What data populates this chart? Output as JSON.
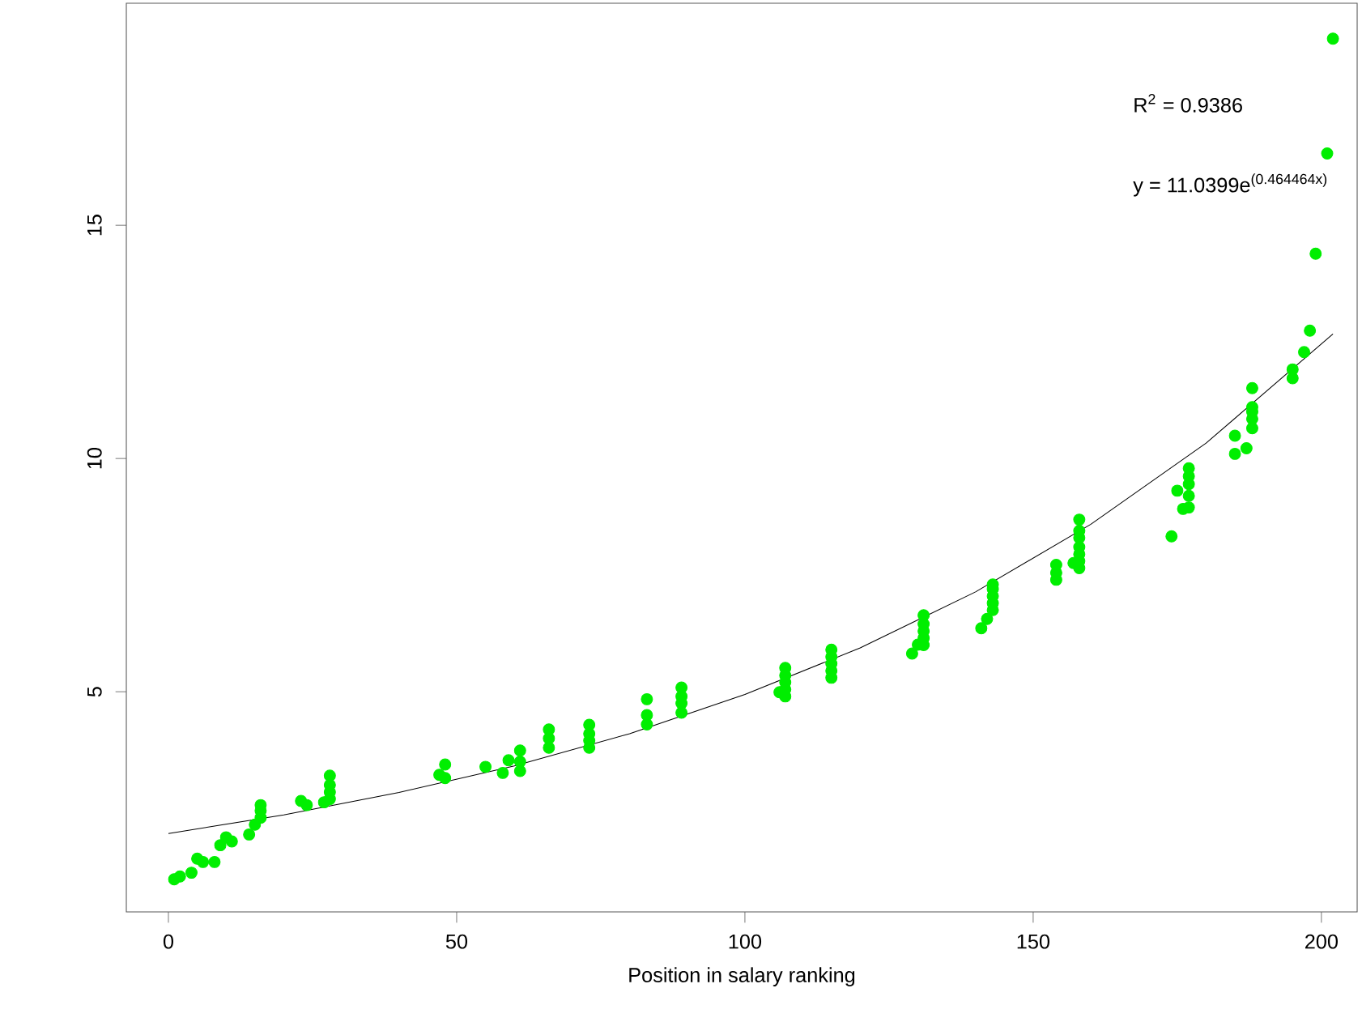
{
  "chart_data": {
    "type": "scatter",
    "xlabel": "Position in salary ranking",
    "annotations": [
      "R$^{2}$ = 0.9386",
      "y = 11.0399e$^{(0.464464x)}$"
    ],
    "xlim": [
      -7.3,
      206.2
    ],
    "ylim": [
      0.28,
      19.76
    ],
    "xticks": [
      0,
      50,
      100,
      150,
      200
    ],
    "yticks": [
      5,
      10,
      15
    ],
    "grid": false,
    "marker": "circle",
    "series": [
      {
        "color": "#00ee00",
        "x": [
          1,
          2,
          4,
          5,
          6,
          8,
          9,
          10,
          11,
          14,
          15,
          16,
          16,
          16,
          23,
          24,
          27,
          28,
          28,
          28,
          28,
          47,
          48,
          48,
          55,
          58,
          59,
          61,
          61,
          61,
          66,
          66,
          66,
          73,
          73,
          73,
          73,
          83,
          83,
          83,
          89,
          89,
          89,
          89,
          106,
          107,
          107,
          107,
          107,
          107,
          115,
          115,
          115,
          115,
          115,
          129,
          130,
          131,
          131,
          131,
          131,
          131,
          141,
          142,
          143,
          143,
          143,
          143,
          143,
          154,
          154,
          154,
          157,
          158,
          158,
          158,
          158,
          158,
          158,
          158,
          174,
          175,
          176,
          177,
          177,
          177,
          177,
          177,
          185,
          185,
          187,
          188,
          188,
          188,
          188,
          188,
          195,
          195,
          197,
          198,
          199,
          201,
          202
        ],
        "values": [
          0.98,
          1.04,
          1.12,
          1.42,
          1.35,
          1.35,
          1.71,
          1.88,
          1.79,
          1.94,
          2.15,
          2.3,
          2.45,
          2.57,
          2.66,
          2.57,
          2.63,
          2.7,
          2.85,
          3.0,
          3.2,
          3.22,
          3.15,
          3.44,
          3.39,
          3.26,
          3.53,
          3.3,
          3.5,
          3.74,
          3.8,
          4.0,
          4.19,
          3.8,
          3.95,
          4.1,
          4.29,
          4.3,
          4.5,
          4.84,
          4.55,
          4.75,
          4.9,
          5.09,
          4.99,
          4.9,
          5.05,
          5.2,
          5.35,
          5.51,
          5.3,
          5.45,
          5.6,
          5.75,
          5.9,
          5.82,
          6.01,
          6.0,
          6.15,
          6.3,
          6.45,
          6.64,
          6.36,
          6.56,
          6.75,
          6.9,
          7.05,
          7.2,
          7.3,
          7.4,
          7.55,
          7.72,
          7.76,
          7.65,
          7.8,
          7.95,
          8.1,
          8.3,
          8.45,
          8.69,
          8.33,
          9.31,
          8.92,
          8.95,
          9.2,
          9.45,
          9.62,
          9.79,
          10.49,
          10.1,
          10.22,
          10.65,
          10.85,
          11.0,
          11.1,
          11.51,
          11.91,
          11.72,
          12.28,
          12.74,
          14.39,
          16.54,
          19.0
        ]
      },
      {
        "type": "line",
        "color": "#000000",
        "marker": "none",
        "line_style": "solid",
        "x": [
          0,
          20,
          40,
          60,
          80,
          100,
          120,
          140,
          160,
          180,
          202
        ],
        "values": [
          1.96,
          2.36,
          2.84,
          3.41,
          4.1,
          4.94,
          5.94,
          7.14,
          8.59,
          10.33,
          12.67
        ]
      }
    ]
  }
}
